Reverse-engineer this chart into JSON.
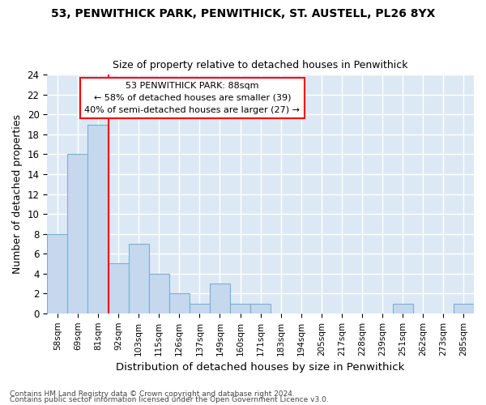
{
  "title": "53, PENWITHICK PARK, PENWITHICK, ST. AUSTELL, PL26 8YX",
  "subtitle": "Size of property relative to detached houses in Penwithick",
  "xlabel": "Distribution of detached houses by size in Penwithick",
  "ylabel": "Number of detached properties",
  "footer_line1": "Contains HM Land Registry data © Crown copyright and database right 2024.",
  "footer_line2": "Contains public sector information licensed under the Open Government Licence v3.0.",
  "bin_labels": [
    "58sqm",
    "69sqm",
    "81sqm",
    "92sqm",
    "103sqm",
    "115sqm",
    "126sqm",
    "137sqm",
    "149sqm",
    "160sqm",
    "171sqm",
    "183sqm",
    "194sqm",
    "205sqm",
    "217sqm",
    "228sqm",
    "239sqm",
    "251sqm",
    "262sqm",
    "273sqm",
    "285sqm"
  ],
  "bar_values": [
    8,
    16,
    19,
    5,
    7,
    4,
    2,
    1,
    3,
    1,
    1,
    0,
    0,
    0,
    0,
    0,
    0,
    1,
    0,
    0,
    1
  ],
  "bar_color": "#c5d8ee",
  "bar_edgecolor": "#7bafd4",
  "bg_color": "#dce9f5",
  "grid_color": "#ffffff",
  "red_line_x": 2.5,
  "annotation_title": "53 PENWITHICK PARK: 88sqm",
  "annotation_line1": "← 58% of detached houses are smaller (39)",
  "annotation_line2": "40% of semi-detached houses are larger (27) →",
  "ylim": [
    0,
    24
  ],
  "yticks": [
    0,
    2,
    4,
    6,
    8,
    10,
    12,
    14,
    16,
    18,
    20,
    22,
    24
  ]
}
